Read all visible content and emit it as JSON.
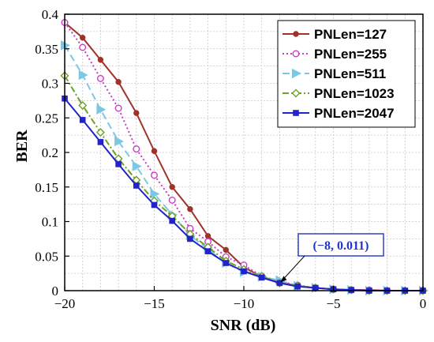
{
  "chart_data": {
    "type": "line",
    "xlabel": "SNR (dB)",
    "ylabel": "BER",
    "xlim": [
      -20,
      0
    ],
    "ylim": [
      0,
      0.4
    ],
    "xticks": [
      -20,
      -15,
      -10,
      -5,
      0
    ],
    "xtick_labels": [
      "−20",
      "−15",
      "−10",
      "−5",
      "0"
    ],
    "yticks": [
      0,
      0.05,
      0.1,
      0.15,
      0.2,
      0.25,
      0.3,
      0.35,
      0.4
    ],
    "ytick_labels": [
      "0",
      "0.05",
      "0.1",
      "0.15",
      "0.2",
      "0.25",
      "0.3",
      "0.35",
      "0.4"
    ],
    "grid": true,
    "legend_position": "top-right",
    "x": [
      -20,
      -19,
      -18,
      -17,
      -16,
      -15,
      -14,
      -13,
      -12,
      -11,
      -10,
      -9,
      -8,
      -7,
      -6,
      -5,
      -4,
      -3,
      -2,
      -1,
      0
    ],
    "series": [
      {
        "name": "PNLen=127",
        "color": "#a0322a",
        "dash": "solid",
        "marker": "dot",
        "values": [
          0.388,
          0.366,
          0.334,
          0.302,
          0.257,
          0.202,
          0.15,
          0.118,
          0.079,
          0.059,
          0.034,
          0.02,
          0.012,
          0.007,
          0.004,
          0.002,
          0.001,
          0.001,
          0.0,
          0.0,
          0.0
        ]
      },
      {
        "name": "PNLen=255",
        "color": "#c83cc8",
        "dash": "dotted",
        "marker": "circle",
        "values": [
          0.388,
          0.352,
          0.307,
          0.264,
          0.205,
          0.167,
          0.131,
          0.09,
          0.071,
          0.049,
          0.037,
          0.021,
          0.013,
          0.008,
          0.004,
          0.002,
          0.001,
          0.001,
          0.0,
          0.0,
          0.0
        ]
      },
      {
        "name": "PNLen=511",
        "color": "#7cc8e4",
        "dash": "dashed",
        "marker": "triangle-right",
        "values": [
          0.355,
          0.312,
          0.262,
          0.216,
          0.18,
          0.14,
          0.11,
          0.08,
          0.06,
          0.04,
          0.027,
          0.02,
          0.015,
          0.007,
          0.004,
          0.002,
          0.001,
          0.0,
          0.0,
          0.0,
          0.0
        ]
      },
      {
        "name": "PNLen=1023",
        "color": "#6fa028",
        "dash": "dashdot",
        "marker": "diamond",
        "values": [
          0.311,
          0.268,
          0.229,
          0.191,
          0.16,
          0.13,
          0.108,
          0.082,
          0.063,
          0.043,
          0.031,
          0.021,
          0.011,
          0.007,
          0.004,
          0.002,
          0.001,
          0.0,
          0.0,
          0.0,
          0.0
        ]
      },
      {
        "name": "PNLen=2047",
        "color": "#2323c8",
        "dash": "solid",
        "marker": "square",
        "values": [
          0.278,
          0.247,
          0.215,
          0.183,
          0.152,
          0.124,
          0.101,
          0.075,
          0.057,
          0.04,
          0.028,
          0.019,
          0.011,
          0.006,
          0.004,
          0.002,
          0.001,
          0.0,
          0.0,
          0.0,
          0.0
        ]
      }
    ],
    "annotations": [
      {
        "text": "(−8, 0.011)",
        "x": -8,
        "y": 0.011
      }
    ]
  }
}
